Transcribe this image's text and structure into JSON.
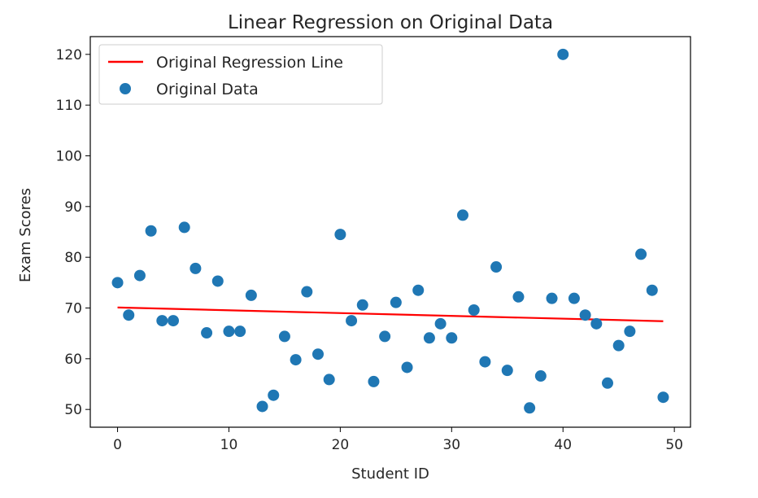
{
  "chart_data": {
    "type": "scatter",
    "title": "Linear Regression on Original Data",
    "xlabel": "Student ID",
    "ylabel": "Exam Scores",
    "xlim": [
      -2.45,
      51.45
    ],
    "ylim": [
      46.5,
      123.5
    ],
    "xticks": [
      0,
      10,
      20,
      30,
      40,
      50
    ],
    "yticks": [
      50,
      60,
      70,
      80,
      90,
      100,
      110,
      120
    ],
    "grid": false,
    "legend_position": "upper-left",
    "series": [
      {
        "name": "Original Regression Line",
        "kind": "line",
        "color": "#ff0000",
        "x": [
          0,
          49
        ],
        "y": [
          70.1,
          67.4
        ]
      },
      {
        "name": "Original Data",
        "kind": "scatter",
        "color": "#1f77b4",
        "x": [
          0,
          1,
          2,
          3,
          4,
          5,
          6,
          7,
          8,
          9,
          10,
          11,
          12,
          13,
          14,
          15,
          16,
          17,
          18,
          19,
          20,
          21,
          22,
          23,
          24,
          25,
          26,
          27,
          28,
          29,
          30,
          31,
          32,
          33,
          34,
          35,
          36,
          37,
          38,
          39,
          40,
          41,
          42,
          43,
          44,
          45,
          46,
          47,
          48,
          49
        ],
        "y": [
          75,
          68.6,
          76.4,
          85.2,
          67.5,
          67.5,
          85.9,
          77.8,
          65.1,
          75.3,
          65.4,
          65.4,
          72.5,
          50.6,
          52.8,
          64.4,
          59.8,
          73.2,
          60.9,
          55.9,
          84.5,
          67.5,
          70.6,
          55.5,
          64.4,
          71.1,
          58.3,
          73.5,
          64.1,
          66.9,
          64.1,
          88.3,
          69.6,
          59.4,
          78.1,
          57.7,
          72.2,
          50.3,
          56.6,
          71.9,
          120,
          71.9,
          68.6,
          66.9,
          55.2,
          62.6,
          65.4,
          80.6,
          73.5,
          52.4
        ]
      }
    ]
  }
}
